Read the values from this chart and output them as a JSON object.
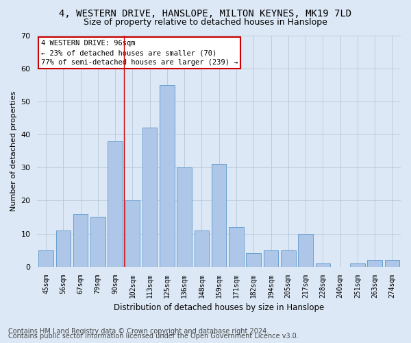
{
  "title1": "4, WESTERN DRIVE, HANSLOPE, MILTON KEYNES, MK19 7LD",
  "title2": "Size of property relative to detached houses in Hanslope",
  "xlabel": "Distribution of detached houses by size in Hanslope",
  "ylabel": "Number of detached properties",
  "categories": [
    "45sqm",
    "56sqm",
    "67sqm",
    "79sqm",
    "90sqm",
    "102sqm",
    "113sqm",
    "125sqm",
    "136sqm",
    "148sqm",
    "159sqm",
    "171sqm",
    "182sqm",
    "194sqm",
    "205sqm",
    "217sqm",
    "228sqm",
    "240sqm",
    "251sqm",
    "263sqm",
    "274sqm"
  ],
  "values": [
    5,
    11,
    16,
    15,
    38,
    20,
    42,
    55,
    30,
    11,
    31,
    12,
    4,
    5,
    5,
    10,
    1,
    0,
    1,
    2,
    2
  ],
  "bar_color": "#aec6e8",
  "bar_edge_color": "#6aa0d0",
  "vline_x": 4.5,
  "vline_color": "#cc0000",
  "annotation_text": "4 WESTERN DRIVE: 96sqm\n← 23% of detached houses are smaller (70)\n77% of semi-detached houses are larger (239) →",
  "annotation_box_color": "#ffffff",
  "annotation_box_edge": "#cc0000",
  "ylim": [
    0,
    70
  ],
  "yticks": [
    0,
    10,
    20,
    30,
    40,
    50,
    60,
    70
  ],
  "footer1": "Contains HM Land Registry data © Crown copyright and database right 2024.",
  "footer2": "Contains public sector information licensed under the Open Government Licence v3.0.",
  "bg_color": "#dce8f5",
  "plot_bg_color": "#dce8f5",
  "title1_fontsize": 10,
  "title2_fontsize": 9,
  "footer_fontsize": 7
}
